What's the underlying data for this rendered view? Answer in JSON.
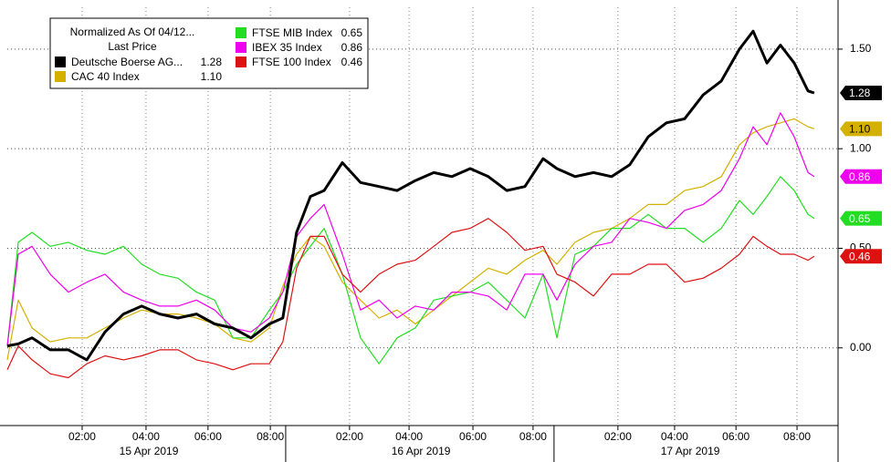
{
  "chart_data": {
    "type": "line",
    "legend_title": "Normalized As Of 04/12...",
    "legend_subtitle": "Last Price",
    "legend": "top-left",
    "grid": true,
    "x": [
      0,
      0.35,
      0.79,
      1.37,
      1.95,
      2.54,
      3.12,
      3.71,
      4.29,
      4.87,
      5.45,
      6.04,
      6.62,
      7.2,
      7.78,
      8.37,
      8.8,
      9.24,
      9.68,
      10.12,
      10.7,
      11.28,
      11.87,
      12.45,
      13.03,
      13.62,
      14.2,
      14.78,
      15.36,
      15.95,
      16.53,
      17.11,
      17.55,
      18.13,
      18.72,
      19.3,
      19.88,
      20.47,
      21.05,
      21.63,
      22.22,
      22.8,
      23.38,
      23.82,
      24.26,
      24.69,
      25.13,
      25.57,
      25.77
    ],
    "xlim": [
      0,
      26.53
    ],
    "xticks": [
      {
        "value": 2.39,
        "label": "02:00"
      },
      {
        "value": 4.43,
        "label": "04:00"
      },
      {
        "value": 6.41,
        "label": "06:00"
      },
      {
        "value": 8.4,
        "label": "08:00"
      },
      {
        "value": 10.93,
        "label": "02:00"
      },
      {
        "value": 12.83,
        "label": "04:00"
      },
      {
        "value": 14.87,
        "label": "06:00"
      },
      {
        "value": 16.79,
        "label": "08:00"
      },
      {
        "value": 19.5,
        "label": "02:00"
      },
      {
        "value": 21.31,
        "label": "04:00"
      },
      {
        "value": 23.27,
        "label": "06:00"
      },
      {
        "value": 25.22,
        "label": "08:00"
      }
    ],
    "date_labels": [
      {
        "value": 4.52,
        "label": "15 Apr 2019"
      },
      {
        "value": 13.21,
        "label": "16 Apr 2019"
      },
      {
        "value": 21.81,
        "label": "17 Apr 2019"
      }
    ],
    "day_separators": [
      8.89,
      17.46
    ],
    "ylim": [
      -0.39,
      1.71
    ],
    "yticks": [
      {
        "value": 0,
        "label": "0.00"
      },
      {
        "value": 0.5,
        "label": "0.50"
      },
      {
        "value": 1,
        "label": "1.00"
      },
      {
        "value": 1.5,
        "label": "1.50"
      }
    ],
    "series": [
      {
        "name": "Deutsche Boerse AG...",
        "last_price": "1.28",
        "color": "#000000",
        "values": [
          0.01,
          0.02,
          0.05,
          -0.01,
          -0.01,
          -0.06,
          0.08,
          0.17,
          0.21,
          0.17,
          0.15,
          0.17,
          0.12,
          0.1,
          0.05,
          0.12,
          0.15,
          0.58,
          0.76,
          0.79,
          0.93,
          0.83,
          0.81,
          0.79,
          0.84,
          0.88,
          0.86,
          0.9,
          0.86,
          0.79,
          0.81,
          0.95,
          0.9,
          0.86,
          0.88,
          0.86,
          0.92,
          1.06,
          1.13,
          1.15,
          1.27,
          1.34,
          1.5,
          1.59,
          1.43,
          1.52,
          1.43,
          1.29,
          1.28
        ]
      },
      {
        "name": "CAC 40 Index",
        "last_price": "1.10",
        "color": "#d4b000",
        "values": [
          -0.06,
          0.24,
          0.1,
          0.03,
          0.05,
          0.05,
          0.1,
          0.15,
          0.19,
          0.17,
          0.17,
          0.15,
          0.12,
          0.05,
          0.03,
          0.1,
          0.31,
          0.47,
          0.56,
          0.51,
          0.33,
          0.24,
          0.15,
          0.19,
          0.12,
          0.19,
          0.26,
          0.33,
          0.4,
          0.37,
          0.44,
          0.49,
          0.42,
          0.53,
          0.58,
          0.6,
          0.65,
          0.72,
          0.72,
          0.79,
          0.81,
          0.86,
          1.02,
          1.08,
          1.11,
          1.13,
          1.15,
          1.11,
          1.1
        ]
      },
      {
        "name": "FTSE MIB Index",
        "last_price": "0.65",
        "color": "#22dd22",
        "values": [
          0.01,
          0.53,
          0.58,
          0.51,
          0.53,
          0.49,
          0.47,
          0.51,
          0.42,
          0.37,
          0.35,
          0.28,
          0.24,
          0.05,
          0.05,
          0.19,
          0.28,
          0.42,
          0.51,
          0.6,
          0.37,
          0.05,
          -0.08,
          0.05,
          0.1,
          0.24,
          0.26,
          0.28,
          0.33,
          0.24,
          0.15,
          0.37,
          0.05,
          0.47,
          0.51,
          0.6,
          0.6,
          0.67,
          0.6,
          0.6,
          0.53,
          0.6,
          0.74,
          0.67,
          0.76,
          0.86,
          0.79,
          0.67,
          0.65
        ]
      },
      {
        "name": "IBEX 35 Index",
        "last_price": "0.86",
        "color": "#ee00ee",
        "values": [
          0.01,
          0.47,
          0.51,
          0.37,
          0.28,
          0.33,
          0.37,
          0.28,
          0.24,
          0.21,
          0.21,
          0.24,
          0.19,
          0.1,
          0.08,
          0.15,
          0.28,
          0.56,
          0.65,
          0.72,
          0.47,
          0.19,
          0.24,
          0.15,
          0.21,
          0.19,
          0.28,
          0.28,
          0.26,
          0.19,
          0.37,
          0.37,
          0.24,
          0.42,
          0.51,
          0.53,
          0.65,
          0.63,
          0.6,
          0.69,
          0.72,
          0.79,
          0.95,
          1.11,
          1.02,
          1.18,
          1.06,
          0.88,
          0.86
        ]
      },
      {
        "name": "FTSE 100 Index",
        "last_price": "0.46",
        "color": "#dd1111",
        "values": [
          -0.11,
          0.01,
          -0.06,
          -0.13,
          -0.15,
          -0.08,
          -0.04,
          -0.06,
          -0.04,
          -0.01,
          -0.01,
          -0.06,
          -0.08,
          -0.11,
          -0.08,
          -0.08,
          0.03,
          0.4,
          0.56,
          0.56,
          0.37,
          0.28,
          0.37,
          0.42,
          0.44,
          0.51,
          0.58,
          0.6,
          0.65,
          0.58,
          0.49,
          0.51,
          0.37,
          0.33,
          0.26,
          0.37,
          0.37,
          0.42,
          0.42,
          0.33,
          0.35,
          0.4,
          0.47,
          0.56,
          0.51,
          0.47,
          0.47,
          0.44,
          0.46
        ]
      }
    ]
  }
}
